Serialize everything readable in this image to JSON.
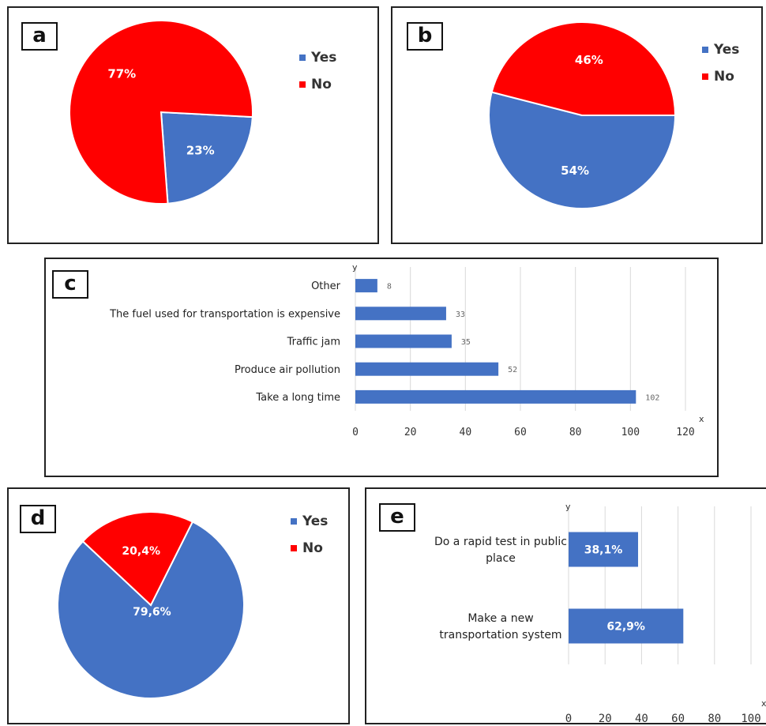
{
  "colors": {
    "yes": "#4472c4",
    "no": "#ff0000",
    "grid": "#d9d9d9",
    "border": "#222222"
  },
  "panels": {
    "a": {
      "tag": "a",
      "legend": [
        "Yes",
        "No"
      ]
    },
    "b": {
      "tag": "b",
      "legend": [
        "Yes",
        "No"
      ]
    },
    "c": {
      "tag": "c",
      "axis_x": "x",
      "axis_y": "y"
    },
    "d": {
      "tag": "d",
      "legend": [
        "Yes",
        "No"
      ]
    },
    "e": {
      "tag": "e",
      "axis_x": "x",
      "axis_y": "y"
    }
  },
  "chart_data": [
    {
      "id": "a",
      "type": "pie",
      "labels": [
        "Yes",
        "No"
      ],
      "values": [
        23,
        77
      ],
      "data_labels": [
        "23%",
        "77%"
      ],
      "colors": [
        "#4472c4",
        "#ff0000"
      ],
      "legend": "right"
    },
    {
      "id": "b",
      "type": "pie",
      "labels": [
        "Yes",
        "No"
      ],
      "values": [
        54,
        46
      ],
      "data_labels": [
        "54%",
        "46%"
      ],
      "colors": [
        "#4472c4",
        "#ff0000"
      ],
      "legend": "right"
    },
    {
      "id": "c",
      "type": "bar",
      "orientation": "horizontal",
      "categories": [
        "Other",
        "The fuel used for transportation is expensive",
        "Traffic jam",
        "Produce air pollution",
        "Take a long time"
      ],
      "values": [
        8,
        33,
        35,
        52,
        102
      ],
      "xticks": [
        "0",
        "20",
        "40",
        "60",
        "80",
        "100",
        "120"
      ],
      "xlim": [
        0,
        120
      ],
      "xlabel": "x",
      "ylabel": "y",
      "grid": true
    },
    {
      "id": "d",
      "type": "pie",
      "labels": [
        "Yes",
        "No"
      ],
      "values": [
        79.6,
        20.4
      ],
      "data_labels": [
        "79,6%",
        "20,4%"
      ],
      "colors": [
        "#4472c4",
        "#ff0000"
      ],
      "legend": "right"
    },
    {
      "id": "e",
      "type": "bar",
      "orientation": "horizontal",
      "categories": [
        "Do a rapid test in public place",
        "Make a new transportation system"
      ],
      "category_lines": [
        [
          "Do a rapid test in public",
          "place"
        ],
        [
          "Make a new",
          "transportation system"
        ]
      ],
      "values": [
        38.1,
        62.9
      ],
      "data_labels": [
        "38,1%",
        "62,9%"
      ],
      "xticks": [
        "0",
        "20",
        "40",
        "60",
        "80",
        "100"
      ],
      "xlim": [
        0,
        100
      ],
      "xlabel": "x",
      "ylabel": "y",
      "grid": true
    }
  ]
}
